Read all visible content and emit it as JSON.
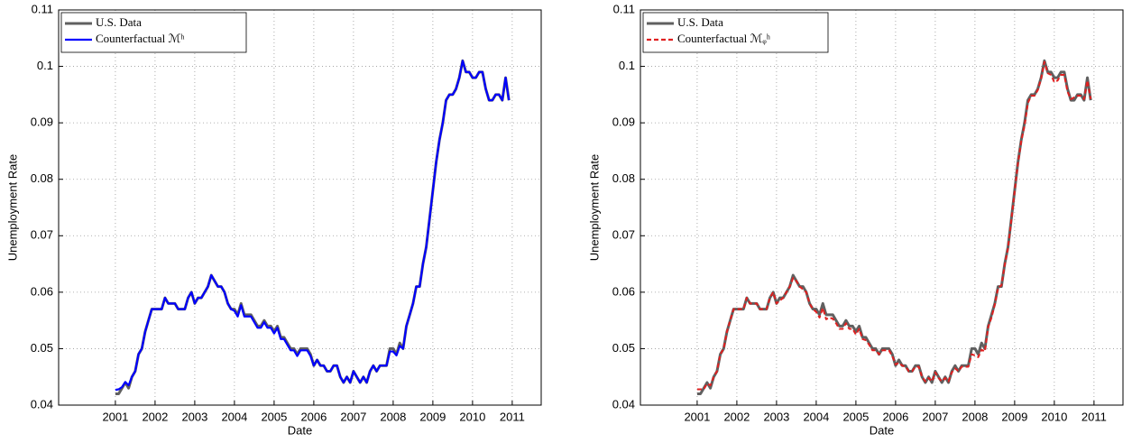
{
  "chart_data": [
    {
      "type": "line",
      "xlabel": "Date",
      "ylabel": "Unemployment Rate",
      "grid": true,
      "legend": "upper left",
      "xlim": [
        1999.57,
        2011.73
      ],
      "xticks": [
        2001,
        2002,
        2003,
        2004,
        2005,
        2006,
        2007,
        2008,
        2009,
        2010,
        2011
      ],
      "ylim": [
        0.04,
        0.11
      ],
      "yticks": [
        0.04,
        0.05,
        0.06,
        0.07,
        0.08,
        0.09,
        0.1,
        0.11
      ],
      "x": [
        2001.0,
        2001.083,
        2001.167,
        2001.25,
        2001.333,
        2001.417,
        2001.5,
        2001.583,
        2001.667,
        2001.75,
        2001.833,
        2001.917,
        2002.0,
        2002.083,
        2002.167,
        2002.25,
        2002.333,
        2002.417,
        2002.5,
        2002.583,
        2002.667,
        2002.75,
        2002.833,
        2002.917,
        2003.0,
        2003.083,
        2003.167,
        2003.25,
        2003.333,
        2003.417,
        2003.5,
        2003.583,
        2003.667,
        2003.75,
        2003.833,
        2003.917,
        2004.0,
        2004.083,
        2004.167,
        2004.25,
        2004.333,
        2004.417,
        2004.5,
        2004.583,
        2004.667,
        2004.75,
        2004.833,
        2004.917,
        2005.0,
        2005.083,
        2005.167,
        2005.25,
        2005.333,
        2005.417,
        2005.5,
        2005.583,
        2005.667,
        2005.75,
        2005.833,
        2005.917,
        2006.0,
        2006.083,
        2006.167,
        2006.25,
        2006.333,
        2006.417,
        2006.5,
        2006.583,
        2006.667,
        2006.75,
        2006.833,
        2006.917,
        2007.0,
        2007.083,
        2007.167,
        2007.25,
        2007.333,
        2007.417,
        2007.5,
        2007.583,
        2007.667,
        2007.75,
        2007.833,
        2007.917,
        2008.0,
        2008.083,
        2008.167,
        2008.25,
        2008.333,
        2008.417,
        2008.5,
        2008.583,
        2008.667,
        2008.75,
        2008.833,
        2008.917,
        2009.0,
        2009.083,
        2009.167,
        2009.25,
        2009.333,
        2009.417,
        2009.5,
        2009.583,
        2009.667,
        2009.75,
        2009.833,
        2009.917,
        2010.0,
        2010.083,
        2010.167,
        2010.25,
        2010.333,
        2010.417,
        2010.5,
        2010.583,
        2010.667,
        2010.75,
        2010.833,
        2010.917
      ],
      "series": [
        {
          "name": "U.S. Data",
          "color": "#606060",
          "linestyle": "solid",
          "values": [
            0.042,
            0.042,
            0.043,
            0.044,
            0.043,
            0.045,
            0.046,
            0.049,
            0.05,
            0.053,
            0.055,
            0.057,
            0.057,
            0.057,
            0.057,
            0.059,
            0.058,
            0.058,
            0.058,
            0.057,
            0.057,
            0.057,
            0.059,
            0.06,
            0.058,
            0.059,
            0.059,
            0.06,
            0.061,
            0.063,
            0.062,
            0.061,
            0.061,
            0.06,
            0.058,
            0.057,
            0.057,
            0.056,
            0.058,
            0.056,
            0.056,
            0.056,
            0.055,
            0.054,
            0.054,
            0.055,
            0.054,
            0.054,
            0.053,
            0.054,
            0.052,
            0.052,
            0.051,
            0.05,
            0.05,
            0.049,
            0.05,
            0.05,
            0.05,
            0.049,
            0.047,
            0.048,
            0.047,
            0.047,
            0.046,
            0.046,
            0.047,
            0.047,
            0.045,
            0.044,
            0.045,
            0.044,
            0.046,
            0.045,
            0.044,
            0.045,
            0.044,
            0.046,
            0.047,
            0.046,
            0.047,
            0.047,
            0.047,
            0.05,
            0.05,
            0.049,
            0.051,
            0.05,
            0.054,
            0.056,
            0.058,
            0.061,
            0.061,
            0.065,
            0.068,
            0.073,
            0.078,
            0.083,
            0.087,
            0.09,
            0.094,
            0.095,
            0.095,
            0.096,
            0.098,
            0.101,
            0.099,
            0.099,
            0.098,
            0.098,
            0.099,
            0.099,
            0.096,
            0.094,
            0.094,
            0.095,
            0.095,
            0.094,
            0.098,
            0.094
          ]
        },
        {
          "name": "Counterfactual ℳʰ",
          "color": "#0000ff",
          "linestyle": "solid",
          "values": [
            0.0427,
            0.0428,
            0.0432,
            0.0441,
            0.0435,
            0.045,
            0.046,
            0.049,
            0.05,
            0.053,
            0.055,
            0.057,
            0.057,
            0.057,
            0.057,
            0.059,
            0.058,
            0.058,
            0.058,
            0.057,
            0.057,
            0.057,
            0.059,
            0.06,
            0.058,
            0.059,
            0.059,
            0.06,
            0.061,
            0.063,
            0.062,
            0.061,
            0.061,
            0.06,
            0.058,
            0.057,
            0.0567,
            0.0557,
            0.0577,
            0.0557,
            0.0557,
            0.0557,
            0.0547,
            0.0537,
            0.0537,
            0.0547,
            0.0537,
            0.0537,
            0.0527,
            0.0537,
            0.0517,
            0.0517,
            0.0507,
            0.0497,
            0.0497,
            0.0487,
            0.0497,
            0.0497,
            0.0497,
            0.0487,
            0.047,
            0.048,
            0.047,
            0.047,
            0.046,
            0.046,
            0.047,
            0.047,
            0.045,
            0.044,
            0.045,
            0.044,
            0.046,
            0.045,
            0.044,
            0.045,
            0.044,
            0.046,
            0.047,
            0.046,
            0.047,
            0.047,
            0.047,
            0.0495,
            0.0495,
            0.0488,
            0.0505,
            0.05,
            0.054,
            0.056,
            0.058,
            0.061,
            0.061,
            0.065,
            0.068,
            0.073,
            0.078,
            0.083,
            0.087,
            0.09,
            0.094,
            0.095,
            0.095,
            0.096,
            0.098,
            0.101,
            0.099,
            0.099,
            0.098,
            0.098,
            0.099,
            0.099,
            0.096,
            0.094,
            0.094,
            0.095,
            0.095,
            0.094,
            0.098,
            0.094
          ]
        }
      ]
    },
    {
      "type": "line",
      "xlabel": "Date",
      "ylabel": "Unemployment Rate",
      "grid": true,
      "legend": "upper left",
      "xlim": [
        1999.57,
        2011.73
      ],
      "xticks": [
        2001,
        2002,
        2003,
        2004,
        2005,
        2006,
        2007,
        2008,
        2009,
        2010,
        2011
      ],
      "ylim": [
        0.04,
        0.11
      ],
      "yticks": [
        0.04,
        0.05,
        0.06,
        0.07,
        0.08,
        0.09,
        0.1,
        0.11
      ],
      "x": [
        2001.0,
        2001.083,
        2001.167,
        2001.25,
        2001.333,
        2001.417,
        2001.5,
        2001.583,
        2001.667,
        2001.75,
        2001.833,
        2001.917,
        2002.0,
        2002.083,
        2002.167,
        2002.25,
        2002.333,
        2002.417,
        2002.5,
        2002.583,
        2002.667,
        2002.75,
        2002.833,
        2002.917,
        2003.0,
        2003.083,
        2003.167,
        2003.25,
        2003.333,
        2003.417,
        2003.5,
        2003.583,
        2003.667,
        2003.75,
        2003.833,
        2003.917,
        2004.0,
        2004.083,
        2004.167,
        2004.25,
        2004.333,
        2004.417,
        2004.5,
        2004.583,
        2004.667,
        2004.75,
        2004.833,
        2004.917,
        2005.0,
        2005.083,
        2005.167,
        2005.25,
        2005.333,
        2005.417,
        2005.5,
        2005.583,
        2005.667,
        2005.75,
        2005.833,
        2005.917,
        2006.0,
        2006.083,
        2006.167,
        2006.25,
        2006.333,
        2006.417,
        2006.5,
        2006.583,
        2006.667,
        2006.75,
        2006.833,
        2006.917,
        2007.0,
        2007.083,
        2007.167,
        2007.25,
        2007.333,
        2007.417,
        2007.5,
        2007.583,
        2007.667,
        2007.75,
        2007.833,
        2007.917,
        2008.0,
        2008.083,
        2008.167,
        2008.25,
        2008.333,
        2008.417,
        2008.5,
        2008.583,
        2008.667,
        2008.75,
        2008.833,
        2008.917,
        2009.0,
        2009.083,
        2009.167,
        2009.25,
        2009.333,
        2009.417,
        2009.5,
        2009.583,
        2009.667,
        2009.75,
        2009.833,
        2009.917,
        2010.0,
        2010.083,
        2010.167,
        2010.25,
        2010.333,
        2010.417,
        2010.5,
        2010.583,
        2010.667,
        2010.75,
        2010.833,
        2010.917
      ],
      "series": [
        {
          "name": "U.S. Data",
          "color": "#606060",
          "linestyle": "solid",
          "values": [
            0.042,
            0.042,
            0.043,
            0.044,
            0.043,
            0.045,
            0.046,
            0.049,
            0.05,
            0.053,
            0.055,
            0.057,
            0.057,
            0.057,
            0.057,
            0.059,
            0.058,
            0.058,
            0.058,
            0.057,
            0.057,
            0.057,
            0.059,
            0.06,
            0.058,
            0.059,
            0.059,
            0.06,
            0.061,
            0.063,
            0.062,
            0.061,
            0.061,
            0.06,
            0.058,
            0.057,
            0.057,
            0.056,
            0.058,
            0.056,
            0.056,
            0.056,
            0.055,
            0.054,
            0.054,
            0.055,
            0.054,
            0.054,
            0.053,
            0.054,
            0.052,
            0.052,
            0.051,
            0.05,
            0.05,
            0.049,
            0.05,
            0.05,
            0.05,
            0.049,
            0.047,
            0.048,
            0.047,
            0.047,
            0.046,
            0.046,
            0.047,
            0.047,
            0.045,
            0.044,
            0.045,
            0.044,
            0.046,
            0.045,
            0.044,
            0.045,
            0.044,
            0.046,
            0.047,
            0.046,
            0.047,
            0.047,
            0.047,
            0.05,
            0.05,
            0.049,
            0.051,
            0.05,
            0.054,
            0.056,
            0.058,
            0.061,
            0.061,
            0.065,
            0.068,
            0.073,
            0.078,
            0.083,
            0.087,
            0.09,
            0.094,
            0.095,
            0.095,
            0.096,
            0.098,
            0.101,
            0.099,
            0.099,
            0.098,
            0.098,
            0.099,
            0.099,
            0.096,
            0.094,
            0.094,
            0.095,
            0.095,
            0.094,
            0.098,
            0.094
          ]
        },
        {
          "name": "Counterfactual ℳᵩʰ",
          "color": "#e02020",
          "linestyle": "dashed",
          "values": [
            0.0428,
            0.0428,
            0.0428,
            0.0438,
            0.0435,
            0.045,
            0.046,
            0.049,
            0.05,
            0.053,
            0.055,
            0.057,
            0.057,
            0.057,
            0.057,
            0.059,
            0.058,
            0.058,
            0.058,
            0.057,
            0.057,
            0.057,
            0.059,
            0.06,
            0.058,
            0.0585,
            0.059,
            0.06,
            0.061,
            0.0625,
            0.062,
            0.061,
            0.0605,
            0.06,
            0.058,
            0.057,
            0.0565,
            0.0555,
            0.0572,
            0.0552,
            0.0555,
            0.0553,
            0.0545,
            0.0535,
            0.0535,
            0.0545,
            0.0535,
            0.0535,
            0.0525,
            0.0535,
            0.0517,
            0.0515,
            0.0507,
            0.0497,
            0.0497,
            0.049,
            0.0497,
            0.0497,
            0.0497,
            0.0487,
            0.0472,
            0.0475,
            0.047,
            0.0468,
            0.046,
            0.046,
            0.0468,
            0.0468,
            0.045,
            0.0442,
            0.0448,
            0.0442,
            0.0458,
            0.0448,
            0.0442,
            0.0448,
            0.0442,
            0.0458,
            0.0465,
            0.046,
            0.0468,
            0.0468,
            0.0468,
            0.049,
            0.0488,
            0.0485,
            0.0498,
            0.0495,
            0.0538,
            0.0555,
            0.0578,
            0.0608,
            0.0612,
            0.0648,
            0.0678,
            0.0728,
            0.0778,
            0.0828,
            0.0868,
            0.0895,
            0.0935,
            0.0948,
            0.0948,
            0.0958,
            0.0978,
            0.1008,
            0.0988,
            0.0985,
            0.0972,
            0.0975,
            0.0985,
            0.0985,
            0.0955,
            0.0942,
            0.0945,
            0.0948,
            0.0948,
            0.0942,
            0.0975,
            0.0942
          ]
        }
      ]
    }
  ]
}
